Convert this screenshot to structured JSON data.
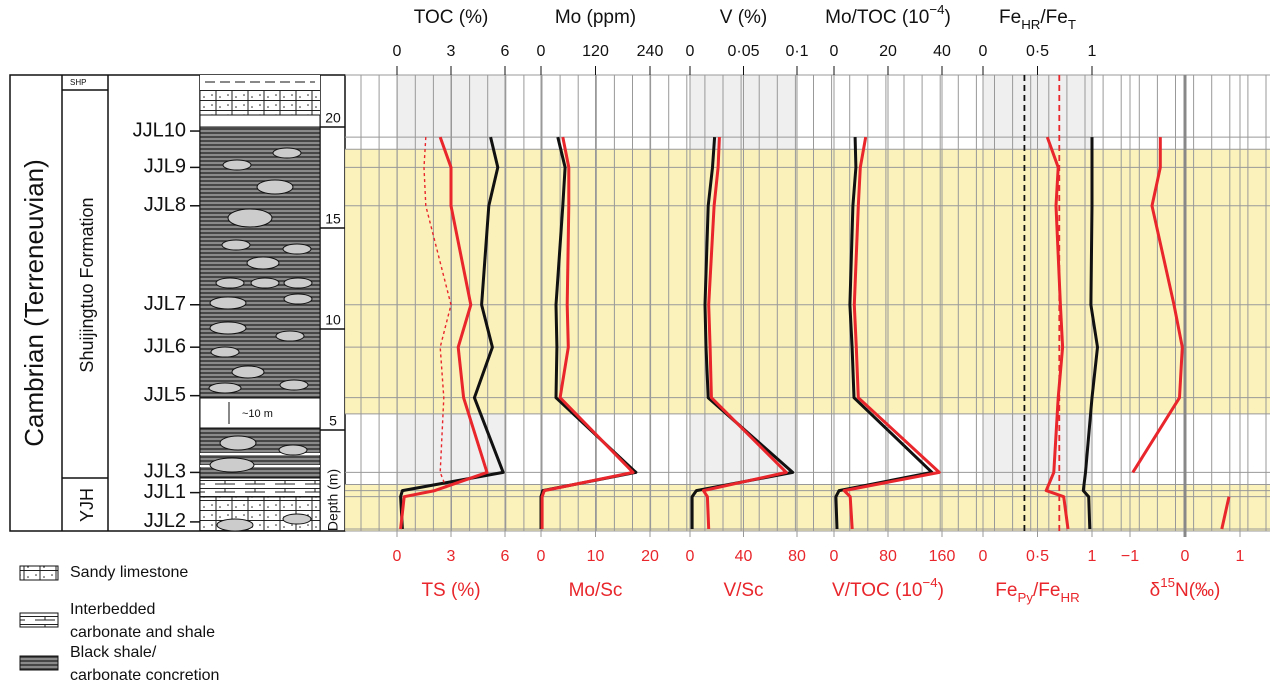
{
  "chart_data": {
    "type": "depth_profile",
    "depth_label": "Depth (m)",
    "ylim": [
      0,
      20
    ],
    "yticks": [
      5,
      10,
      15,
      20
    ],
    "depths": [
      19.5,
      18.0,
      16.1,
      11.2,
      9.1,
      6.6,
      2.9,
      2.0,
      1.7,
      0.1
    ],
    "bands": [
      {
        "from": 5.8,
        "to": 18.9,
        "color": "#fbf1b4"
      },
      {
        "from": 0,
        "to": 2.3,
        "color": "#fbf1b4"
      }
    ],
    "period": "Cambrian (Terreneuvian)",
    "formations": [
      "SHP",
      "Shuijingtuo Formation",
      "YJH"
    ],
    "gap_label": "~10 m",
    "samples": [
      {
        "label": "JJL10",
        "depth": 19.8
      },
      {
        "label": "JJL9",
        "depth": 18.0
      },
      {
        "label": "JJL8",
        "depth": 16.1
      },
      {
        "label": "JJL7",
        "depth": 11.2
      },
      {
        "label": "JJL6",
        "depth": 9.1
      },
      {
        "label": "JJL5",
        "depth": 6.7
      },
      {
        "label": "JJL3",
        "depth": 2.9
      },
      {
        "label": "JJL1",
        "depth": 1.9
      },
      {
        "label": "JJL2",
        "depth": 0.45
      }
    ],
    "legend": [
      {
        "lines": [
          "Sandy limestone"
        ],
        "pattern": "sandy"
      },
      {
        "lines": [
          "Interbedded",
          "carbonate and shale"
        ],
        "pattern": "interbedded"
      },
      {
        "lines": [
          "Black shale/",
          "carbonate concretion"
        ],
        "pattern": "shale"
      }
    ],
    "panels": [
      {
        "top_title": [
          "TOC (%)"
        ],
        "top_lim": [
          0,
          6
        ],
        "top_ticks": [
          0,
          3,
          6
        ],
        "bottom_title": [
          "TS (%)"
        ],
        "bottom_lim": [
          0,
          6
        ],
        "bottom_ticks": [
          0,
          3,
          6
        ],
        "shaded": true,
        "series": [
          {
            "axis": "top",
            "color": "#111111",
            "style": "solid",
            "values": [
              5.2,
              5.6,
              5.1,
              4.7,
              5.3,
              4.3,
              5.9,
              0.3,
              0.2,
              0.3
            ]
          },
          {
            "axis": "bottom",
            "color": "#e8262b",
            "style": "solid",
            "values": [
              2.4,
              3.0,
              3.0,
              4.1,
              3.4,
              3.7,
              5.0,
              2.1,
              0.4,
              0.2
            ]
          },
          {
            "axis": "bottom",
            "color": "#e8262b",
            "style": "dotted",
            "values": [
              1.6,
              1.5,
              1.6,
              3.0,
              2.4,
              2.6,
              2.4,
              2.8,
              null,
              null
            ]
          }
        ]
      },
      {
        "top_title": [
          "Mo (ppm)"
        ],
        "top_lim": [
          0,
          240
        ],
        "top_ticks": [
          0,
          120,
          240
        ],
        "bottom_title": [
          "Mo/Sc"
        ],
        "bottom_lim": [
          0,
          20
        ],
        "bottom_ticks": [
          0,
          10,
          20
        ],
        "shaded": false,
        "series": [
          {
            "axis": "top",
            "color": "#111111",
            "style": "solid",
            "values": [
              37,
              53,
              48,
              33,
              35,
              33,
              209,
              4,
              0,
              0
            ]
          },
          {
            "axis": "bottom",
            "color": "#e8262b",
            "style": "solid",
            "values": [
              4.0,
              5.1,
              5.1,
              4.8,
              5.0,
              3.5,
              16.9,
              0.6,
              0.2,
              0.2
            ]
          }
        ]
      },
      {
        "top_title": [
          "V (%)"
        ],
        "top_lim": [
          0,
          0.1
        ],
        "top_ticks": [
          0,
          {
            "value": 0.05,
            "label": "0·05"
          },
          {
            "value": 0.1,
            "label": "0·1"
          }
        ],
        "bottom_title": [
          "V/Sc"
        ],
        "bottom_lim": [
          0,
          80
        ],
        "bottom_ticks": [
          0,
          40,
          80
        ],
        "shaded": true,
        "series": [
          {
            "axis": "top",
            "color": "#111111",
            "style": "solid",
            "values": [
              0.023,
              0.021,
              0.017,
              0.014,
              0.015,
              0.017,
              0.096,
              0.006,
              0.002,
              0.002
            ]
          },
          {
            "axis": "bottom",
            "color": "#e8262b",
            "style": "solid",
            "values": [
              22,
              21,
              18,
              14,
              15,
              16,
              72,
              10,
              13,
              14
            ]
          }
        ]
      },
      {
        "top_title": [
          "Mo/TOC (10",
          {
            "sup": "−4"
          },
          ")"
        ],
        "top_lim": [
          0,
          40
        ],
        "top_ticks": [
          0,
          20,
          40
        ],
        "bottom_title": [
          "V/TOC (10",
          {
            "sup": "−4"
          },
          ")"
        ],
        "bottom_lim": [
          0,
          160
        ],
        "bottom_ticks": [
          0,
          80,
          160
        ],
        "shaded": false,
        "series": [
          {
            "axis": "top",
            "color": "#111111",
            "style": "solid",
            "values": [
              7.8,
              8.1,
              7.0,
              5.9,
              6.7,
              7.4,
              36.3,
              1.9,
              0.7,
              1.1
            ]
          },
          {
            "axis": "bottom",
            "color": "#e8262b",
            "style": "solid",
            "values": [
              47,
              39,
              36,
              30,
              33,
              36,
              156,
              15,
              24,
              27
            ]
          }
        ]
      },
      {
        "top_title": [
          "Fe",
          {
            "sub": "HR"
          },
          "/Fe",
          {
            "sub": "T"
          }
        ],
        "top_lim": [
          0,
          1
        ],
        "top_ticks": [
          0,
          {
            "value": 0.5,
            "label": "0·5"
          },
          1
        ],
        "bottom_title": [
          "Fe",
          {
            "sub": "Py"
          },
          "/Fe",
          {
            "sub": "HR"
          }
        ],
        "bottom_lim": [
          0,
          1
        ],
        "bottom_ticks": [
          0,
          {
            "value": 0.5,
            "label": "0·5"
          },
          1
        ],
        "shaded": true,
        "reference_lines": [
          {
            "value": 0.38,
            "axis": "top",
            "color": "#111111"
          },
          {
            "value": 0.7,
            "axis": "bottom",
            "color": "#e8262b"
          }
        ],
        "series": [
          {
            "axis": "top",
            "color": "#111111",
            "style": "solid",
            "values": [
              1.0,
              1.0,
              1.0,
              0.99,
              1.05,
              1.0,
              0.94,
              0.92,
              0.97,
              0.98
            ]
          },
          {
            "axis": "bottom",
            "color": "#e8262b",
            "style": "solid",
            "values": [
              0.59,
              0.69,
              0.67,
              0.71,
              0.73,
              0.69,
              0.65,
              0.58,
              0.74,
              0.78
            ]
          }
        ]
      },
      {
        "bottom_title": [
          "δ",
          {
            "sup": "15"
          },
          "N(‰)"
        ],
        "bottom_lim": [
          -1,
          1
        ],
        "bottom_ticks": [
          {
            "value": -1,
            "label": "−1"
          },
          0,
          1
        ],
        "shaded": false,
        "series": [
          {
            "axis": "bottom",
            "color": "#e8262b",
            "style": "solid",
            "values": [
              -0.45,
              -0.45,
              -0.6,
              -0.2,
              -0.05,
              -0.1,
              -0.95,
              null,
              0.8,
              0.67
            ]
          }
        ]
      }
    ]
  }
}
